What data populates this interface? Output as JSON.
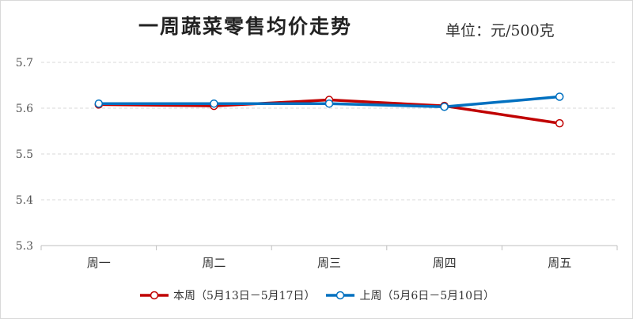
{
  "chart_data": {
    "type": "line",
    "title": "一周蔬菜零售均价走势",
    "unit_label": "单位：元/500克",
    "categories": [
      "周一",
      "周二",
      "周三",
      "周四",
      "周五"
    ],
    "y_ticks": [
      "5.3",
      "5.4",
      "5.5",
      "5.6",
      "5.7"
    ],
    "ylim": [
      5.3,
      5.7
    ],
    "grid": true,
    "legend_position": "bottom",
    "series": [
      {
        "name": "本周（5月13日－5月17日）",
        "color": "#C00000",
        "values": [
          5.608,
          5.605,
          5.618,
          5.605,
          5.567
        ]
      },
      {
        "name": "上周（5月6日－5月10日）",
        "color": "#0070C0",
        "values": [
          5.61,
          5.61,
          5.61,
          5.603,
          5.625
        ]
      }
    ]
  }
}
